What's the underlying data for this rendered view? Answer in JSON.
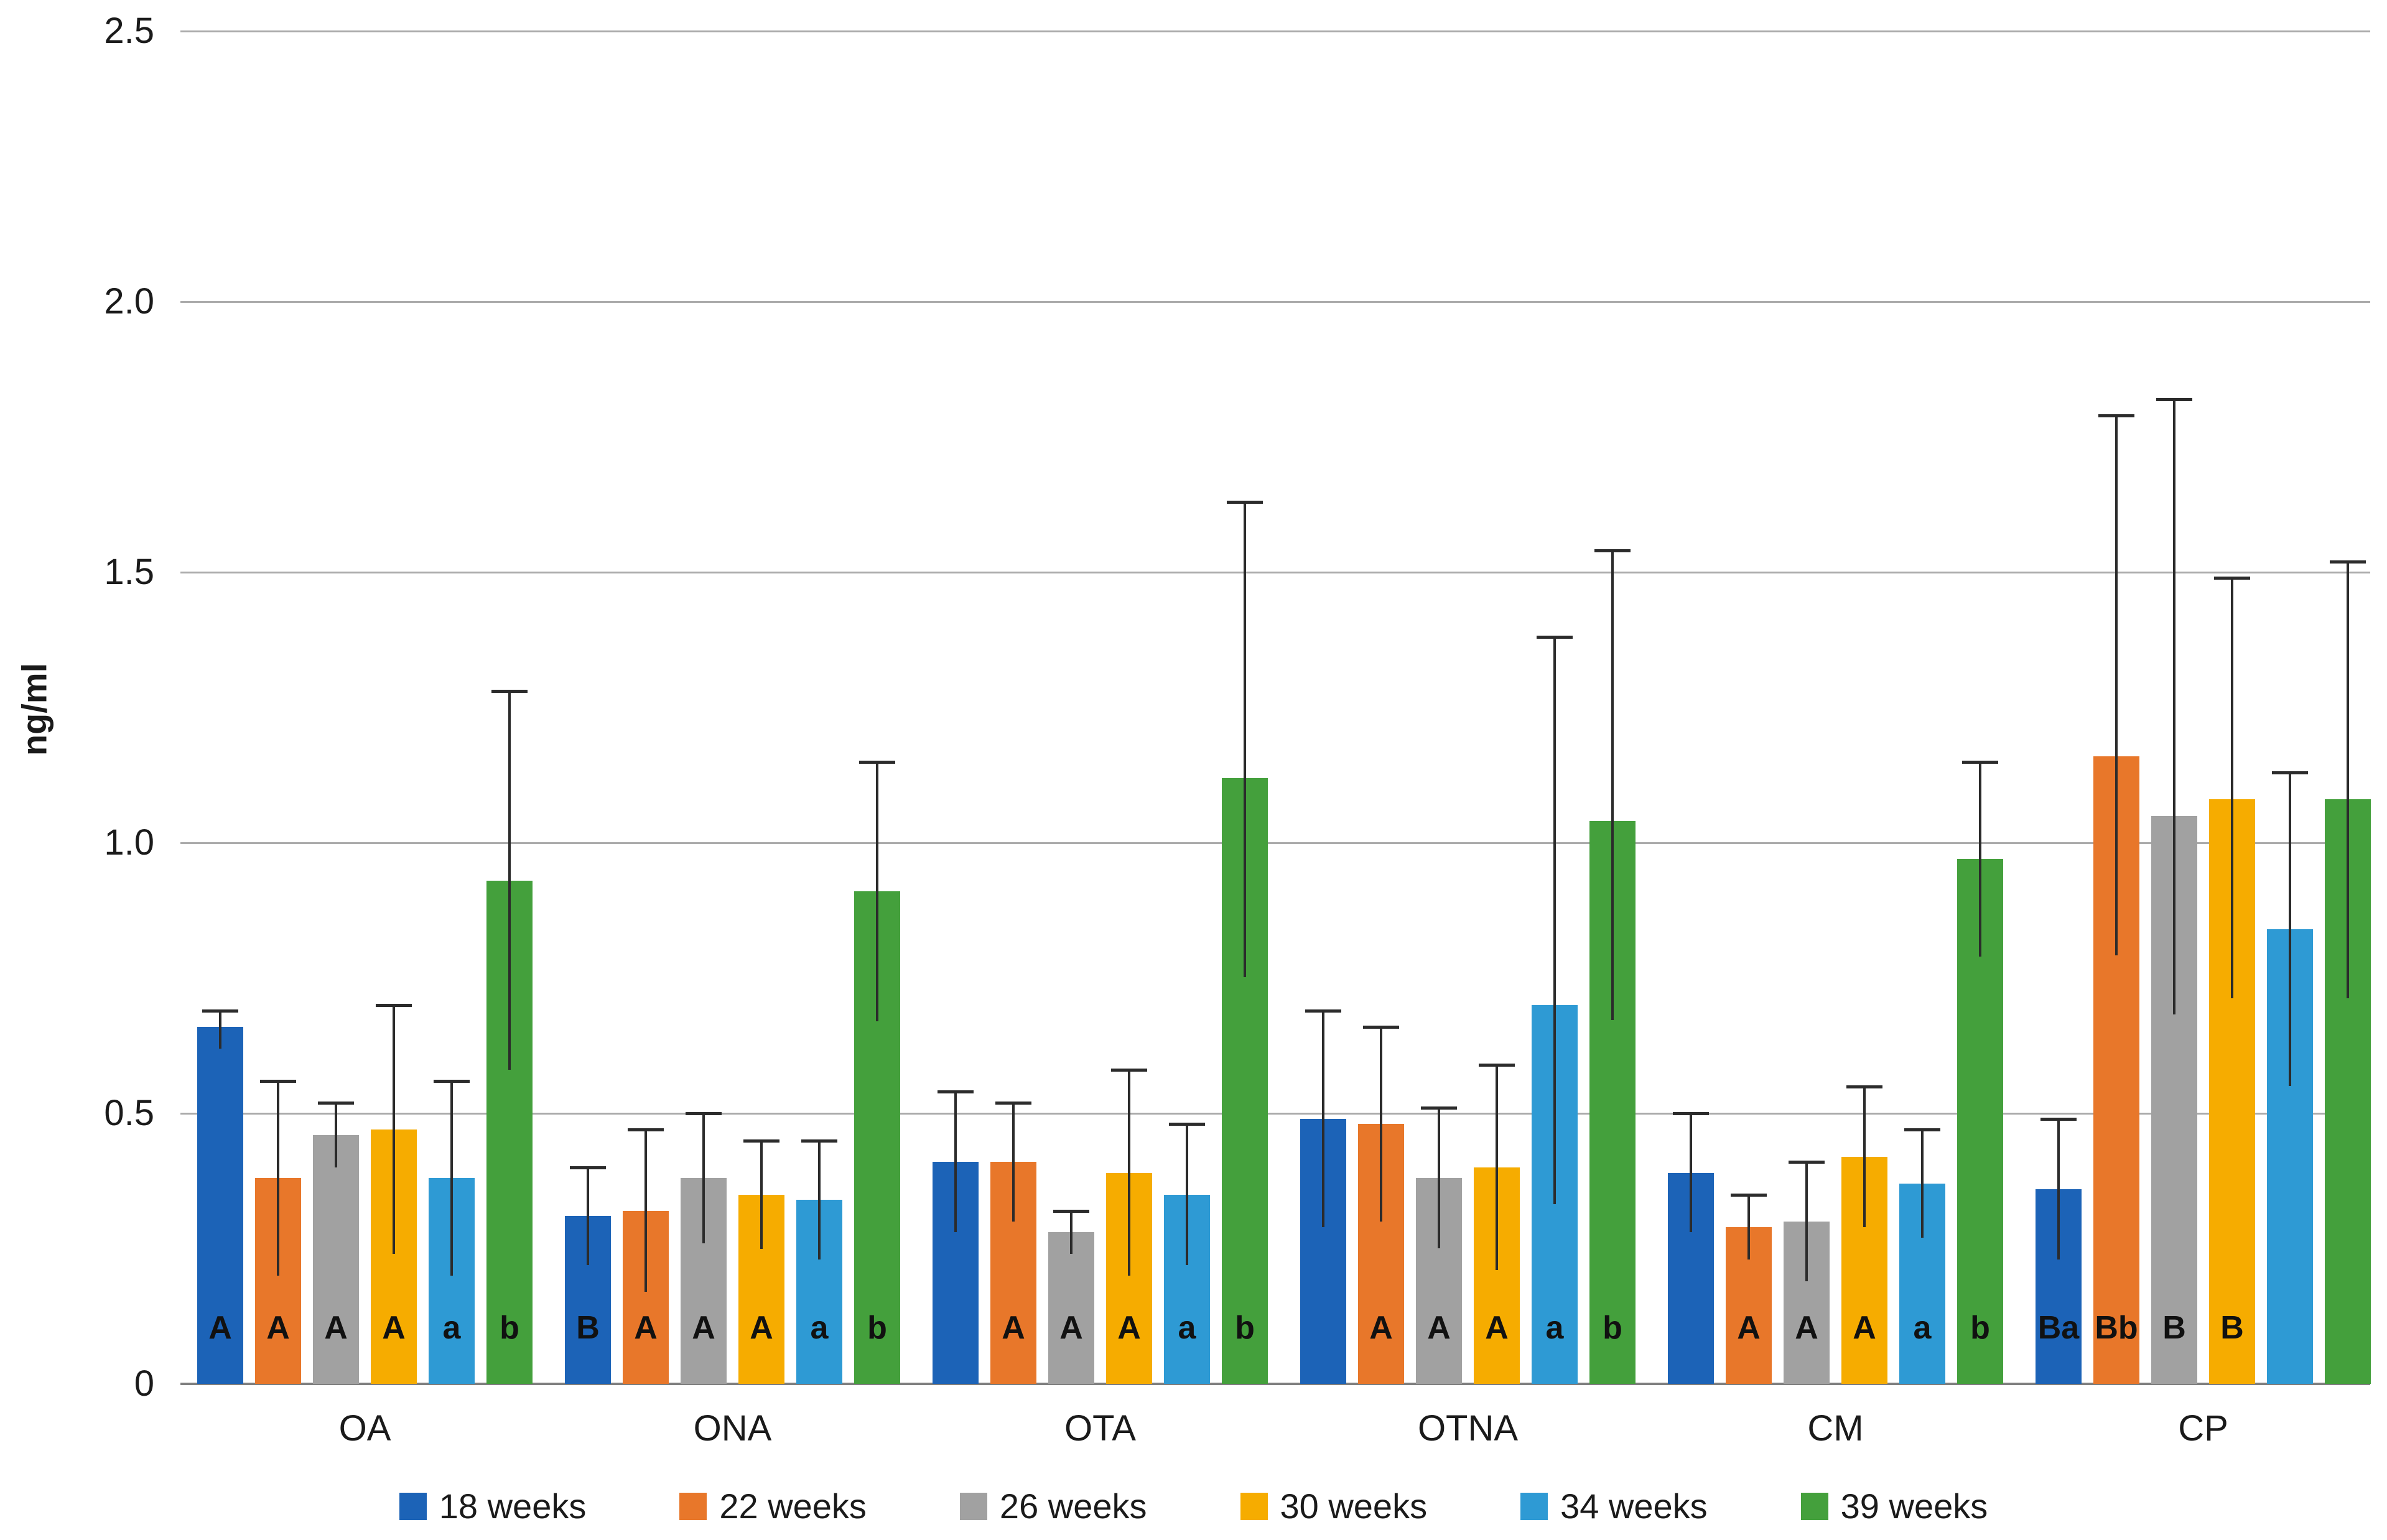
{
  "chart_data": {
    "type": "bar",
    "title": "",
    "xlabel": "",
    "ylabel": "ng/ml",
    "ylim": [
      0,
      2.5
    ],
    "yticks": [
      0,
      0.5,
      1.0,
      1.5,
      2.0,
      2.5
    ],
    "ytick_labels": [
      "0",
      "0.5",
      "1.0",
      "1.5",
      "2.0",
      "2.5"
    ],
    "categories": [
      "OA",
      "ONA",
      "OTA",
      "OTNA",
      "CM",
      "CP"
    ],
    "grid": true,
    "legend_position": "bottom",
    "series": [
      {
        "name": "18 weeks",
        "color": "#1c63b7",
        "values": [
          0.66,
          0.31,
          0.41,
          0.49,
          0.39,
          0.36
        ],
        "error_top": [
          0.69,
          0.4,
          0.54,
          0.69,
          0.5,
          0.49
        ],
        "letters": [
          "A",
          "B",
          "",
          "",
          "",
          "Ba"
        ]
      },
      {
        "name": "22 weeks",
        "color": "#e8772a",
        "values": [
          0.38,
          0.32,
          0.41,
          0.48,
          0.29,
          1.16
        ],
        "error_top": [
          0.56,
          0.47,
          0.52,
          0.66,
          0.35,
          1.79
        ],
        "letters": [
          "A",
          "A",
          "A",
          "A",
          "A",
          "Bb"
        ]
      },
      {
        "name": "26 weeks",
        "color": "#a1a1a1",
        "values": [
          0.46,
          0.38,
          0.28,
          0.38,
          0.3,
          1.05
        ],
        "error_top": [
          0.52,
          0.5,
          0.32,
          0.51,
          0.41,
          1.82
        ],
        "letters": [
          "A",
          "A",
          "A",
          "A",
          "A",
          "B"
        ]
      },
      {
        "name": "30 weeks",
        "color": "#f6ac00",
        "values": [
          0.47,
          0.35,
          0.39,
          0.4,
          0.42,
          1.08
        ],
        "error_top": [
          0.7,
          0.45,
          0.58,
          0.59,
          0.55,
          1.49
        ],
        "letters": [
          "A",
          "A",
          "A",
          "A",
          "A",
          "B"
        ]
      },
      {
        "name": "34 weeks",
        "color": "#2e9ad4",
        "values": [
          0.38,
          0.34,
          0.35,
          0.7,
          0.37,
          0.84
        ],
        "error_top": [
          0.56,
          0.45,
          0.48,
          1.38,
          0.47,
          1.13
        ],
        "letters": [
          "a",
          "a",
          "a",
          "a",
          "a",
          ""
        ]
      },
      {
        "name": "39 weeks",
        "color": "#44a03c",
        "values": [
          0.93,
          0.91,
          1.12,
          1.04,
          0.97,
          1.08
        ],
        "error_top": [
          1.28,
          1.15,
          1.63,
          1.54,
          1.15,
          1.52
        ],
        "letters": [
          "b",
          "b",
          "b",
          "b",
          "b",
          ""
        ]
      }
    ],
    "legend": [
      "18 weeks",
      "22 weeks",
      "26 weeks",
      "30 weeks",
      "34 weeks",
      "39 weeks"
    ]
  }
}
